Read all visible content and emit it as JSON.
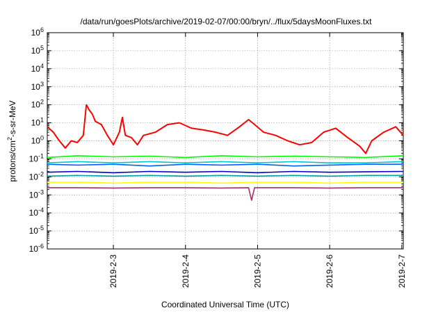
{
  "chart_data": {
    "type": "line",
    "title": "/data/run/goesPlots/archive/2019-02-07/00:00/bryn/../flux/5daysMoonFluxes.txt",
    "xlabel": "Coordinated Universal Time (UTC)",
    "ylabel": "protons/cm²-s-sr-MeV",
    "ylabel_base": "protons/cm",
    "ylabel_sup": "2",
    "ylabel_rest": "-s-sr-MeV",
    "yscale": "log",
    "ylim": [
      1e-06,
      1000000.0
    ],
    "xlim": [
      "2019-02-02 02:00",
      "2019-02-07 00:30"
    ],
    "grid": true,
    "y_ticks": [
      {
        "exp": "-6",
        "value": 1e-06
      },
      {
        "exp": "-5",
        "value": 1e-05
      },
      {
        "exp": "-4",
        "value": 0.0001
      },
      {
        "exp": "-3",
        "value": 0.001
      },
      {
        "exp": "-2",
        "value": 0.01
      },
      {
        "exp": "-1",
        "value": 0.1
      },
      {
        "exp": "0",
        "value": 1
      },
      {
        "exp": "1",
        "value": 10
      },
      {
        "exp": "2",
        "value": 100
      },
      {
        "exp": "3",
        "value": 1000
      },
      {
        "exp": "4",
        "value": 10000
      },
      {
        "exp": "5",
        "value": 100000
      },
      {
        "exp": "6",
        "value": 1000000
      }
    ],
    "x_ticks": [
      {
        "label": "2019-2-3",
        "value": "2019-02-03 00:00"
      },
      {
        "label": "2019-2-4",
        "value": "2019-02-04 00:00"
      },
      {
        "label": "2019-2-5",
        "value": "2019-02-05 00:00"
      },
      {
        "label": "2019-2-6",
        "value": "2019-02-06 00:00"
      },
      {
        "label": "2019-2-7",
        "value": "2019-02-07 00:00"
      }
    ],
    "series": [
      {
        "color": "#ff0000",
        "x": [
          "2019-02-02 02:00",
          "2019-02-02 04:00",
          "2019-02-02 06:00",
          "2019-02-02 08:00",
          "2019-02-02 10:00",
          "2019-02-02 12:00",
          "2019-02-02 14:00",
          "2019-02-02 15:00",
          "2019-02-02 16:00",
          "2019-02-02 17:00",
          "2019-02-02 18:00",
          "2019-02-02 20:00",
          "2019-02-02 22:00",
          "2019-02-03 00:00",
          "2019-02-03 02:00",
          "2019-02-03 03:00",
          "2019-02-03 04:00",
          "2019-02-03 06:00",
          "2019-02-03 08:00",
          "2019-02-03 10:00",
          "2019-02-03 14:00",
          "2019-02-03 18:00",
          "2019-02-03 22:00",
          "2019-02-04 02:00",
          "2019-02-04 06:00",
          "2019-02-04 10:00",
          "2019-02-04 14:00",
          "2019-02-04 18:00",
          "2019-02-04 21:00",
          "2019-02-04 23:00",
          "2019-02-05 02:00",
          "2019-02-05 06:00",
          "2019-02-05 10:00",
          "2019-02-05 14:00",
          "2019-02-05 18:00",
          "2019-02-05 22:00",
          "2019-02-06 02:00",
          "2019-02-06 06:00",
          "2019-02-06 10:00",
          "2019-02-06 12:00",
          "2019-02-06 14:00",
          "2019-02-06 18:00",
          "2019-02-06 22:00",
          "2019-02-07 00:30"
        ],
        "values": [
          6,
          3,
          1,
          0.4,
          1,
          0.8,
          2,
          100,
          50,
          30,
          12,
          8,
          2,
          0.6,
          3,
          20,
          2,
          1.5,
          0.6,
          2,
          3,
          8,
          10,
          5,
          4,
          3,
          2,
          6,
          15,
          8,
          3,
          2,
          1,
          0.6,
          0.8,
          3,
          5,
          1.5,
          0.5,
          0.2,
          1,
          3,
          6,
          2
        ]
      },
      {
        "color": "#00ff00",
        "x": [
          "2019-02-02 02:00",
          "2019-02-02 12:00",
          "2019-02-03 00:00",
          "2019-02-03 12:00",
          "2019-02-04 00:00",
          "2019-02-04 12:00",
          "2019-02-05 00:00",
          "2019-02-05 12:00",
          "2019-02-06 00:00",
          "2019-02-06 12:00",
          "2019-02-07 00:30"
        ],
        "values": [
          0.12,
          0.15,
          0.13,
          0.14,
          0.12,
          0.15,
          0.13,
          0.14,
          0.13,
          0.12,
          0.15
        ]
      },
      {
        "color": "#00c8c8",
        "x": [
          "2019-02-02 02:00",
          "2019-02-02 12:00",
          "2019-02-03 00:00",
          "2019-02-03 12:00",
          "2019-02-04 00:00",
          "2019-02-04 12:00",
          "2019-02-05 00:00",
          "2019-02-05 12:00",
          "2019-02-06 00:00",
          "2019-02-06 12:00",
          "2019-02-07 00:30"
        ],
        "values": [
          0.06,
          0.07,
          0.06,
          0.07,
          0.06,
          0.07,
          0.06,
          0.07,
          0.06,
          0.06,
          0.07
        ]
      },
      {
        "color": "#0060ff",
        "x": [
          "2019-02-02 02:00",
          "2019-02-02 12:00",
          "2019-02-03 00:00",
          "2019-02-03 12:00",
          "2019-02-04 00:00",
          "2019-02-04 12:00",
          "2019-02-05 00:00",
          "2019-02-05 12:00",
          "2019-02-06 00:00",
          "2019-02-06 12:00",
          "2019-02-07 00:30"
        ],
        "values": [
          0.05,
          0.045,
          0.05,
          0.04,
          0.05,
          0.045,
          0.05,
          0.04,
          0.045,
          0.05,
          0.05
        ]
      },
      {
        "color": "#0000c8",
        "x": [
          "2019-02-02 02:00",
          "2019-02-02 12:00",
          "2019-02-03 00:00",
          "2019-02-03 12:00",
          "2019-02-04 00:00",
          "2019-02-04 12:00",
          "2019-02-05 00:00",
          "2019-02-05 12:00",
          "2019-02-06 00:00",
          "2019-02-06 12:00",
          "2019-02-07 00:30"
        ],
        "values": [
          0.018,
          0.02,
          0.017,
          0.02,
          0.018,
          0.02,
          0.017,
          0.02,
          0.018,
          0.019,
          0.02
        ]
      },
      {
        "color": "#00a0a0",
        "x": [
          "2019-02-02 02:00",
          "2019-02-02 12:00",
          "2019-02-03 00:00",
          "2019-02-03 12:00",
          "2019-02-04 00:00",
          "2019-02-04 12:00",
          "2019-02-05 00:00",
          "2019-02-05 12:00",
          "2019-02-06 00:00",
          "2019-02-06 12:00",
          "2019-02-07 00:30"
        ],
        "values": [
          0.011,
          0.012,
          0.011,
          0.012,
          0.011,
          0.012,
          0.011,
          0.012,
          0.011,
          0.012,
          0.012
        ]
      },
      {
        "color": "#ffff00",
        "x": [
          "2019-02-02 02:00",
          "2019-02-02 12:00",
          "2019-02-03 00:00",
          "2019-02-03 12:00",
          "2019-02-04 00:00",
          "2019-02-04 12:00",
          "2019-02-05 00:00",
          "2019-02-05 12:00",
          "2019-02-06 00:00",
          "2019-02-06 12:00",
          "2019-02-07 00:30"
        ],
        "values": [
          0.005,
          0.005,
          0.0045,
          0.005,
          0.005,
          0.0045,
          0.005,
          0.005,
          0.0045,
          0.005,
          0.005
        ]
      },
      {
        "color": "#a0306e",
        "x": [
          "2019-02-02 02:00",
          "2019-02-02 12:00",
          "2019-02-03 00:00",
          "2019-02-03 12:00",
          "2019-02-04 00:00",
          "2019-02-04 12:00",
          "2019-02-04 21:00",
          "2019-02-04 22:00",
          "2019-02-04 23:00",
          "2019-02-05 12:00",
          "2019-02-06 00:00",
          "2019-02-06 12:00",
          "2019-02-07 00:30"
        ],
        "values": [
          0.0025,
          0.0025,
          0.0024,
          0.0025,
          0.0025,
          0.0024,
          0.0025,
          0.0005,
          0.0025,
          0.0025,
          0.0024,
          0.0025,
          0.0025
        ]
      }
    ]
  }
}
